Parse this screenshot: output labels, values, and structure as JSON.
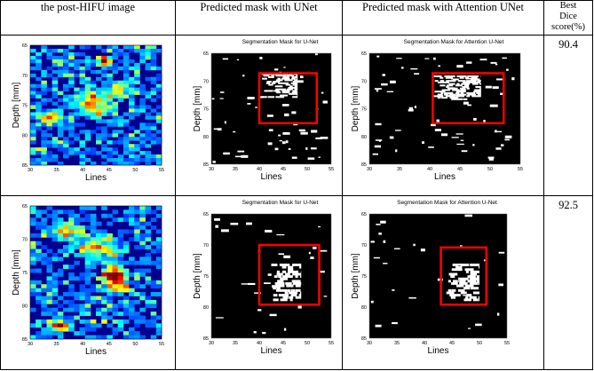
{
  "headers": {
    "col1": "the post-HIFU image",
    "col2": "Predicted mask with UNet",
    "col3": "Predicted mask with Attention UNet",
    "col4_line1": "Best",
    "col4_line2": "Dice",
    "col4_line3": "score(%)"
  },
  "rows": [
    {
      "score": "90.4",
      "unet_title": "Segmentation Mask for U-Net",
      "att_title": "Segmentation Mask for Attention U-Net",
      "xlabel": "Lines",
      "ylabel": "Depth [mm]",
      "yticks": [
        "65",
        "70",
        "75",
        "80",
        "85"
      ],
      "xticks": [
        "30",
        "35",
        "40",
        "45",
        "50",
        "55"
      ]
    },
    {
      "score": "92.5",
      "unet_title": "Segmentation Mask for U-Net",
      "att_title": "Segmentation Mask for Attention U-Net",
      "xlabel": "Lines",
      "ylabel": "Depth [mm]",
      "yticks": [
        "65",
        "70",
        "75",
        "80",
        "85"
      ],
      "xticks": [
        "30",
        "35",
        "40",
        "45",
        "50",
        "55"
      ]
    }
  ],
  "colors": {
    "roi_box": "#ff0000",
    "mask_bg": "#000000",
    "mask_fg": "#ffffff",
    "heat_low": "#00008f",
    "heat_high": "#ff0000"
  }
}
